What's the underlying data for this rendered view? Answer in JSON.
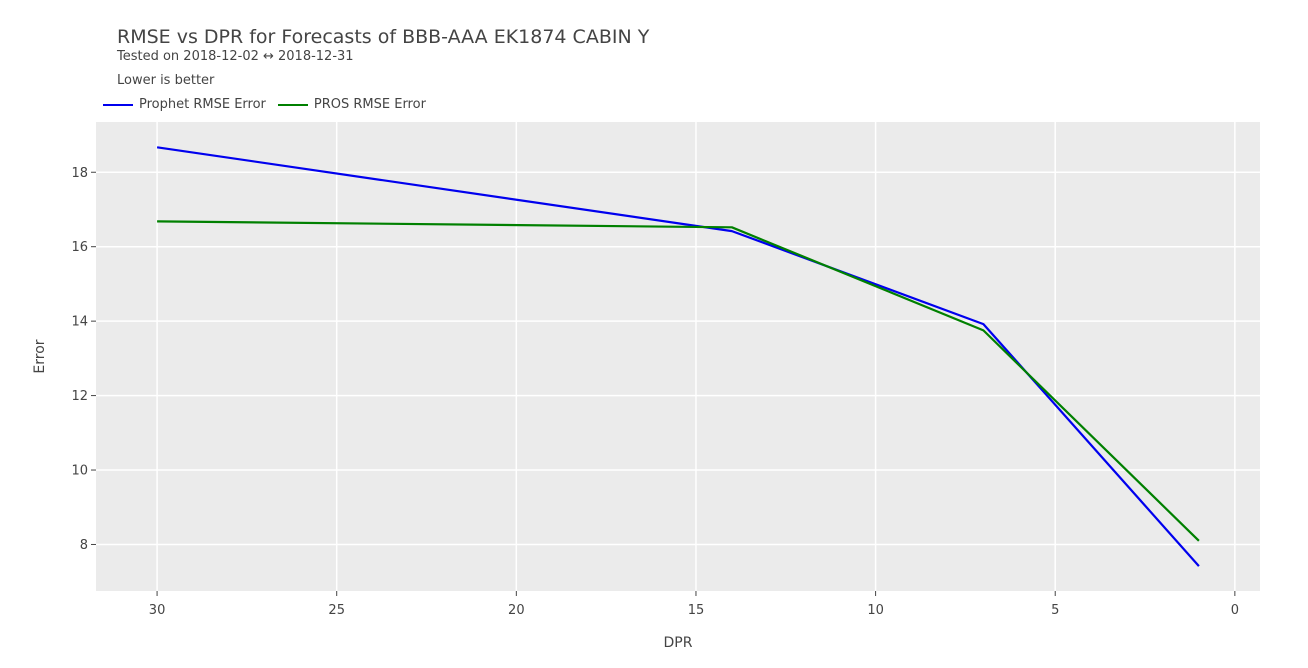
{
  "chart_data": {
    "type": "line",
    "title": "RMSE vs DPR for Forecasts of BBB-AAA EK1874 CABIN Y",
    "subtitle": "Tested on 2018-12-02 ↔ 2018-12-31",
    "annotation": "Lower is better",
    "xlabel": "DPR",
    "ylabel": "Error",
    "xlim": [
      31.7,
      -0.7
    ],
    "ylim": [
      6.75,
      19.35
    ],
    "x_reversed": true,
    "xticks": [
      30,
      25,
      20,
      15,
      10,
      5,
      0
    ],
    "yticks": [
      8,
      10,
      12,
      14,
      16,
      18
    ],
    "grid": true,
    "legend_position": "top-left",
    "x": [
      30,
      14,
      7,
      1
    ],
    "series": [
      {
        "name": "Prophet RMSE Error",
        "color": "#0000ee",
        "values": [
          18.67,
          16.42,
          13.92,
          7.42
        ]
      },
      {
        "name": "PROS RMSE Error",
        "color": "#008000",
        "values": [
          16.68,
          16.52,
          13.75,
          8.1
        ]
      }
    ]
  }
}
